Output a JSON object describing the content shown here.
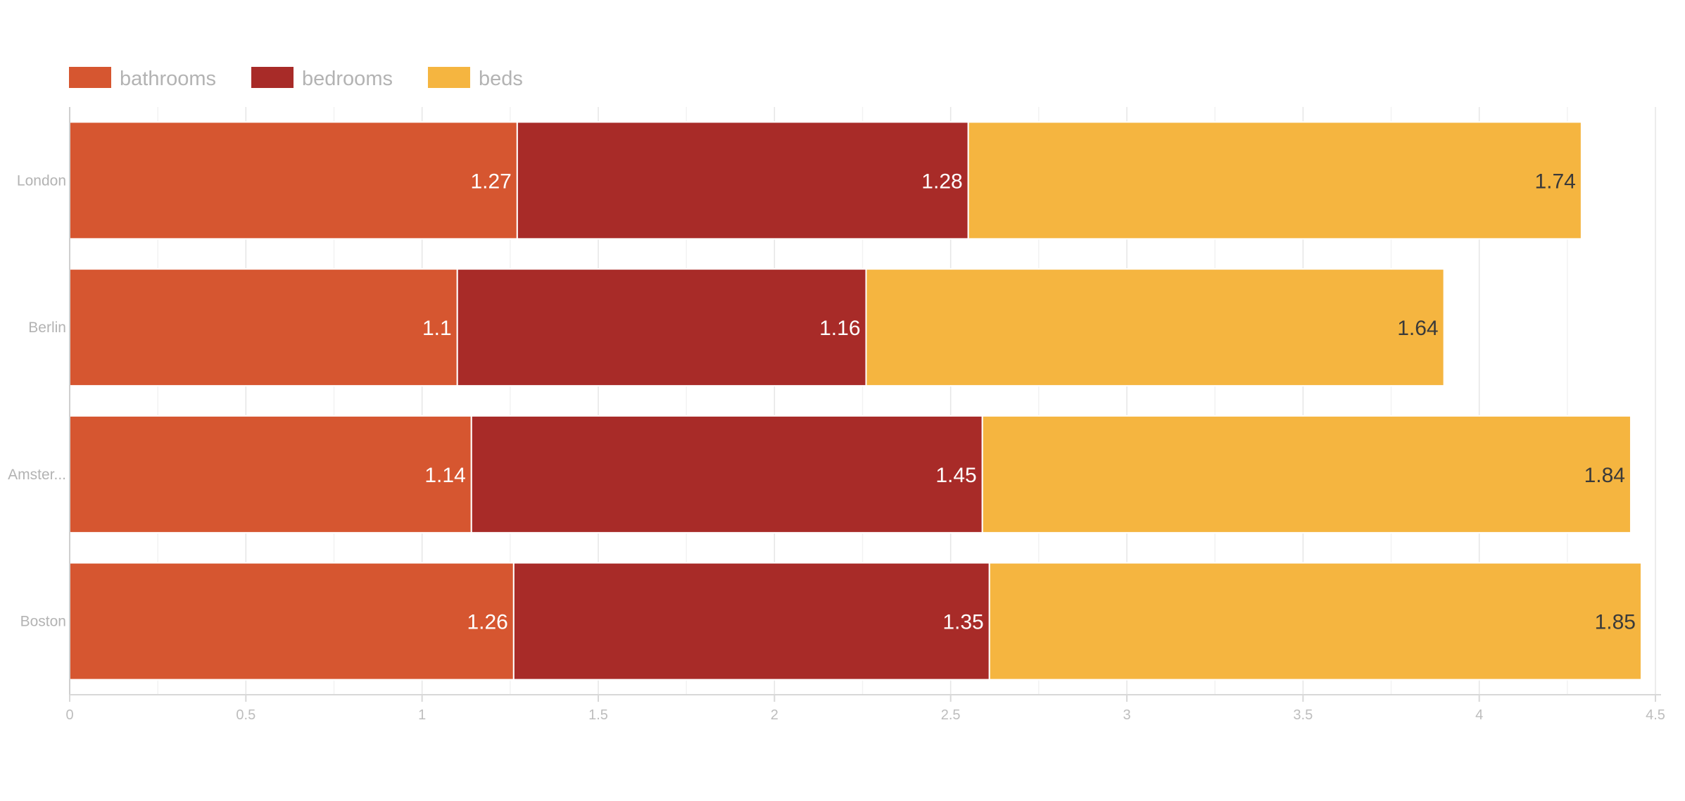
{
  "chart_data": {
    "type": "bar",
    "orientation": "horizontal",
    "stacked": true,
    "categories": [
      "London",
      "Berlin",
      "Amster...",
      "Boston"
    ],
    "series": [
      {
        "name": "bathrooms",
        "color": "#d65630",
        "label_color": "#ffffff",
        "values": [
          1.27,
          1.1,
          1.14,
          1.26
        ],
        "labels": [
          "1.27",
          "1.1",
          "1.14",
          "1.26"
        ]
      },
      {
        "name": "bedrooms",
        "color": "#a82b28",
        "label_color": "#ffffff",
        "values": [
          1.28,
          1.16,
          1.45,
          1.35
        ],
        "labels": [
          "1.28",
          "1.16",
          "1.45",
          "1.35"
        ]
      },
      {
        "name": "beds",
        "color": "#f5b540",
        "label_color": "#3a3a3a",
        "values": [
          1.74,
          1.64,
          1.84,
          1.85
        ],
        "labels": [
          "1.74",
          "1.64",
          "1.84",
          "1.85"
        ]
      }
    ],
    "xlim": [
      0,
      4.5
    ],
    "x_ticks": [
      "0",
      "0.5",
      "1",
      "1.5",
      "2",
      "2.5",
      "3",
      "3.5",
      "4",
      "4.5"
    ],
    "grid": true,
    "legend": "top-left",
    "title": "",
    "xlabel": "",
    "ylabel": ""
  }
}
